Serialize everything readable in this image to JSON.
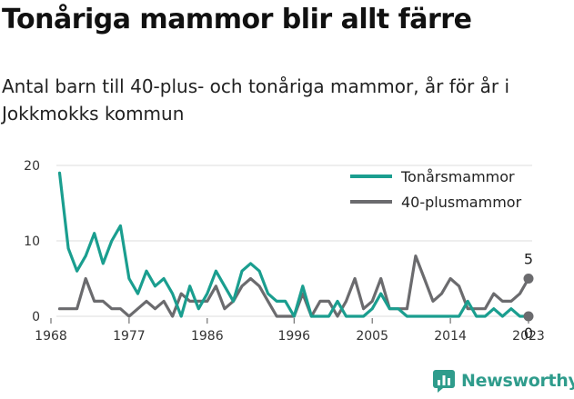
{
  "title": "Tonåriga mammor blir allt färre",
  "subtitle": "Antal barn till 40-plus- och tonåriga mammor, år för år i Jokkmokks kommun",
  "logo": "Newsworthy",
  "colors": {
    "teenage": "#1a9e8f",
    "forty_plus": "#6b6b6e",
    "grid": "#dcdcdc",
    "logo": "#2f9c8c"
  },
  "chart_data": {
    "type": "line",
    "x": [
      1969,
      1970,
      1971,
      1972,
      1973,
      1974,
      1975,
      1976,
      1977,
      1978,
      1979,
      1980,
      1981,
      1982,
      1983,
      1984,
      1985,
      1986,
      1987,
      1988,
      1989,
      1990,
      1991,
      1992,
      1993,
      1994,
      1995,
      1996,
      1997,
      1998,
      1999,
      2000,
      2001,
      2002,
      2003,
      2004,
      2005,
      2006,
      2007,
      2008,
      2009,
      2010,
      2011,
      2012,
      2013,
      2014,
      2015,
      2016,
      2017,
      2018,
      2019,
      2020,
      2021,
      2022,
      2023
    ],
    "series": [
      {
        "name": "Tonårsmammor",
        "color": "#1a9e8f",
        "values": [
          19,
          9,
          6,
          8,
          11,
          7,
          10,
          12,
          5,
          3,
          6,
          4,
          5,
          3,
          0,
          4,
          1,
          3,
          6,
          4,
          2,
          6,
          7,
          6,
          3,
          2,
          2,
          0,
          4,
          0,
          0,
          0,
          2,
          0,
          0,
          0,
          1,
          3,
          1,
          1,
          0,
          0,
          0,
          0,
          0,
          0,
          0,
          2,
          0,
          0,
          1,
          0,
          1,
          0,
          0
        ]
      },
      {
        "name": "40-plusmammor",
        "color": "#6b6b6e",
        "values": [
          1,
          1,
          1,
          5,
          2,
          2,
          1,
          1,
          0,
          1,
          2,
          1,
          2,
          0,
          3,
          2,
          2,
          2,
          4,
          1,
          2,
          4,
          5,
          4,
          2,
          0,
          0,
          0,
          3,
          0,
          2,
          2,
          0,
          2,
          5,
          1,
          2,
          5,
          1,
          1,
          1,
          8,
          5,
          2,
          3,
          5,
          4,
          1,
          1,
          1,
          3,
          2,
          2,
          3,
          5
        ]
      }
    ],
    "xticks": [
      "1968",
      "1977",
      "1986",
      "1996",
      "2005",
      "2014",
      "2023"
    ],
    "yticks": [
      "0",
      "10",
      "20"
    ],
    "xlim": [
      1968,
      2023
    ],
    "ylim": [
      0,
      20
    ],
    "grid": "horizontal",
    "legend": "top-right",
    "end_labels": {
      "forty_plus": "5",
      "teenage": "0"
    }
  }
}
